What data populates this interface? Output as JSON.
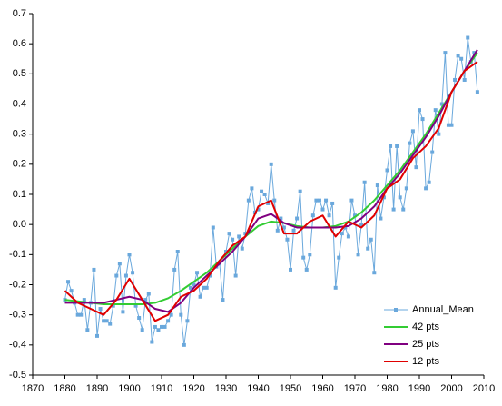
{
  "chart_data": {
    "type": "line",
    "xlim": [
      1870,
      2010
    ],
    "xticks": [
      1870,
      1880,
      1890,
      1900,
      1910,
      1920,
      1930,
      1940,
      1950,
      1960,
      1970,
      1980,
      1990,
      2000,
      2010
    ],
    "ylim": [
      -0.5,
      0.7
    ],
    "yticks": [
      -0.5,
      -0.4,
      -0.3,
      -0.2,
      -0.1,
      {
        "value": 0,
        "label": "0.0"
      },
      0.1,
      0.2,
      0.3,
      0.4,
      0.5,
      0.6,
      0.7
    ],
    "grid": false,
    "legend": "lower right",
    "series": [
      {
        "name": "Annual_Mean",
        "color": "#6aa8dc",
        "markers": true,
        "x": [
          1880,
          1881,
          1882,
          1883,
          1884,
          1885,
          1886,
          1887,
          1888,
          1889,
          1890,
          1891,
          1892,
          1893,
          1894,
          1895,
          1896,
          1897,
          1898,
          1899,
          1900,
          1901,
          1902,
          1903,
          1904,
          1905,
          1906,
          1907,
          1908,
          1909,
          1910,
          1911,
          1912,
          1913,
          1914,
          1915,
          1916,
          1917,
          1918,
          1919,
          1920,
          1921,
          1922,
          1923,
          1924,
          1925,
          1926,
          1927,
          1928,
          1929,
          1930,
          1931,
          1932,
          1933,
          1934,
          1935,
          1936,
          1937,
          1938,
          1939,
          1940,
          1941,
          1942,
          1943,
          1944,
          1945,
          1946,
          1947,
          1948,
          1949,
          1950,
          1951,
          1952,
          1953,
          1954,
          1955,
          1956,
          1957,
          1958,
          1959,
          1960,
          1961,
          1962,
          1963,
          1964,
          1965,
          1966,
          1967,
          1968,
          1969,
          1970,
          1971,
          1972,
          1973,
          1974,
          1975,
          1976,
          1977,
          1978,
          1979,
          1980,
          1981,
          1982,
          1983,
          1984,
          1985,
          1986,
          1987,
          1988,
          1989,
          1990,
          1991,
          1992,
          1993,
          1994,
          1995,
          1996,
          1997,
          1998,
          1999,
          2000,
          2001,
          2002,
          2003,
          2004,
          2005,
          2006,
          2007,
          2008
        ],
        "values": [
          -0.25,
          -0.19,
          -0.22,
          -0.26,
          -0.3,
          -0.3,
          -0.25,
          -0.35,
          -0.26,
          -0.15,
          -0.37,
          -0.28,
          -0.32,
          -0.32,
          -0.33,
          -0.27,
          -0.17,
          -0.13,
          -0.29,
          -0.17,
          -0.1,
          -0.16,
          -0.27,
          -0.31,
          -0.35,
          -0.25,
          -0.23,
          -0.39,
          -0.34,
          -0.35,
          -0.34,
          -0.34,
          -0.32,
          -0.3,
          -0.15,
          -0.09,
          -0.3,
          -0.4,
          -0.32,
          -0.21,
          -0.2,
          -0.16,
          -0.24,
          -0.21,
          -0.21,
          -0.17,
          -0.01,
          -0.14,
          -0.13,
          -0.25,
          -0.09,
          -0.03,
          -0.05,
          -0.17,
          -0.04,
          -0.08,
          -0.03,
          0.08,
          0.12,
          0.04,
          0.05,
          0.11,
          0.1,
          0.07,
          0.2,
          0.08,
          -0.02,
          0.02,
          -0.01,
          -0.05,
          -0.15,
          -0.02,
          0.02,
          0.11,
          -0.11,
          -0.15,
          -0.1,
          0.03,
          0.08,
          0.08,
          0.05,
          0.08,
          0.03,
          0.07,
          -0.21,
          -0.11,
          -0.03,
          -0.01,
          -0.04,
          0.08,
          0.03,
          -0.1,
          0,
          0.14,
          -0.08,
          -0.05,
          -0.16,
          0.13,
          0.02,
          0.09,
          0.18,
          0.26,
          0.05,
          0.26,
          0.09,
          0.05,
          0.12,
          0.27,
          0.31,
          0.19,
          0.38,
          0.35,
          0.12,
          0.14,
          0.24,
          0.38,
          0.3,
          0.4,
          0.57,
          0.33,
          0.33,
          0.48,
          0.56,
          0.55,
          0.48,
          0.62,
          0.54,
          0.57,
          0.44
        ]
      },
      {
        "name": "42 pts",
        "color": "#33cc33",
        "x": [
          1880,
          1884,
          1888,
          1892,
          1896,
          1900,
          1904,
          1908,
          1912,
          1916,
          1920,
          1924,
          1928,
          1932,
          1936,
          1940,
          1944,
          1948,
          1952,
          1956,
          1960,
          1964,
          1968,
          1972,
          1976,
          1980,
          1984,
          1988,
          1992,
          1996,
          2000,
          2004,
          2008
        ],
        "values": [
          -0.25,
          -0.255,
          -0.26,
          -0.265,
          -0.265,
          -0.265,
          -0.265,
          -0.26,
          -0.245,
          -0.22,
          -0.19,
          -0.16,
          -0.12,
          -0.08,
          -0.04,
          -0.005,
          0.01,
          0.005,
          -0.005,
          -0.01,
          -0.01,
          -0.005,
          0.01,
          0.04,
          0.08,
          0.13,
          0.18,
          0.24,
          0.3,
          0.37,
          0.44,
          0.51,
          0.57
        ]
      },
      {
        "name": "25 pts",
        "color": "#800080",
        "x": [
          1880,
          1884,
          1888,
          1892,
          1896,
          1900,
          1904,
          1908,
          1912,
          1916,
          1920,
          1924,
          1928,
          1932,
          1936,
          1940,
          1944,
          1948,
          1952,
          1956,
          1960,
          1964,
          1968,
          1972,
          1976,
          1980,
          1984,
          1988,
          1992,
          1996,
          2000,
          2004,
          2008
        ],
        "values": [
          -0.26,
          -0.26,
          -0.26,
          -0.26,
          -0.25,
          -0.24,
          -0.25,
          -0.28,
          -0.29,
          -0.26,
          -0.21,
          -0.17,
          -0.13,
          -0.09,
          -0.04,
          0.02,
          0.035,
          0.005,
          -0.01,
          -0.01,
          -0.01,
          -0.01,
          -0.005,
          0.02,
          0.06,
          0.12,
          0.17,
          0.23,
          0.29,
          0.36,
          0.44,
          0.51,
          0.58
        ]
      },
      {
        "name": "12 pts",
        "color": "#e00000",
        "x": [
          1880,
          1884,
          1888,
          1892,
          1896,
          1900,
          1904,
          1908,
          1912,
          1916,
          1920,
          1924,
          1928,
          1932,
          1936,
          1940,
          1944,
          1948,
          1952,
          1956,
          1960,
          1964,
          1968,
          1972,
          1976,
          1980,
          1984,
          1988,
          1992,
          1996,
          2000,
          2004,
          2008
        ],
        "values": [
          -0.22,
          -0.26,
          -0.28,
          -0.3,
          -0.25,
          -0.18,
          -0.25,
          -0.32,
          -0.3,
          -0.24,
          -0.22,
          -0.18,
          -0.12,
          -0.07,
          -0.04,
          0.06,
          0.08,
          -0.03,
          -0.03,
          0.01,
          0.03,
          -0.04,
          0.01,
          -0.01,
          0.03,
          0.12,
          0.15,
          0.22,
          0.26,
          0.32,
          0.44,
          0.51,
          0.54
        ]
      }
    ]
  }
}
